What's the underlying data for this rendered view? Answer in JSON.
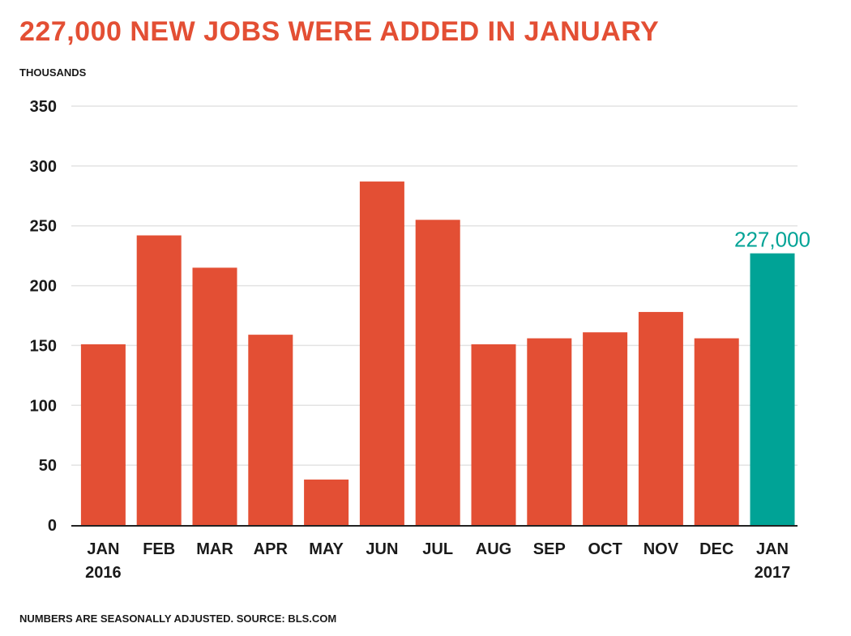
{
  "chart_data": {
    "type": "bar",
    "title": "227,000 NEW JOBS WERE ADDED IN JANUARY",
    "unit_label": "THOUSANDS",
    "footnote": "NUMBERS ARE SEASONALLY ADJUSTED. SOURCE: BLS.COM",
    "categories": [
      [
        "JAN",
        "2016"
      ],
      [
        "FEB"
      ],
      [
        "MAR"
      ],
      [
        "APR"
      ],
      [
        "MAY"
      ],
      [
        "JUN"
      ],
      [
        "JUL"
      ],
      [
        "AUG"
      ],
      [
        "SEP"
      ],
      [
        "OCT"
      ],
      [
        "NOV"
      ],
      [
        "DEC"
      ],
      [
        "JAN",
        "2017"
      ]
    ],
    "values": [
      151,
      242,
      215,
      159,
      38,
      287,
      255,
      151,
      156,
      161,
      178,
      156,
      227
    ],
    "highlight_index": 12,
    "data_label": "227,000",
    "yticks": [
      0,
      50,
      100,
      150,
      200,
      250,
      300,
      350
    ],
    "ylim": [
      0,
      350
    ],
    "grid": true,
    "colors": {
      "bar": "#e34f34",
      "highlight": "#00a396",
      "title": "#e34f34",
      "grid": "#e3e3e3",
      "axis": "#222222"
    }
  }
}
